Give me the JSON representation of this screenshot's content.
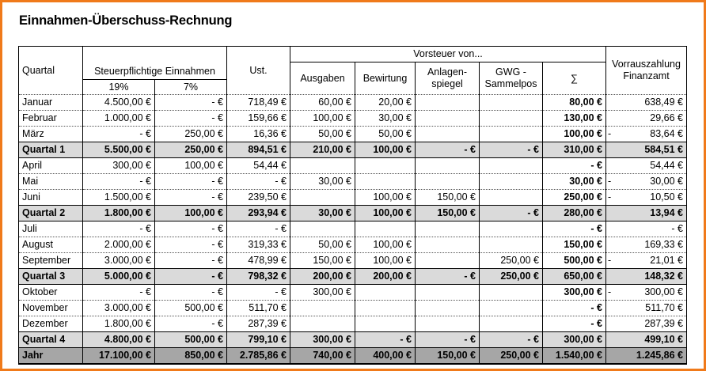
{
  "title": "Einnahmen-Überschuss-Rechnung",
  "headers": {
    "quartal": "Quartal",
    "einnahmen": "Steuerpflichtige Einnahmen",
    "p19": "19%",
    "p7": "7%",
    "ust": "Ust.",
    "vorsteuer": "Vorsteuer von...",
    "ausgaben": "Ausgaben",
    "bewirtung": "Bewirtung",
    "anlagen1": "Anlagen-",
    "anlagen2": "spiegel",
    "gwg1": "GWG -",
    "gwg2": "Sammelpos",
    "sum": "∑",
    "vorraus1": "Vorrauszahlung",
    "vorraus2": "Finanzamt"
  },
  "rows": [
    {
      "type": "month",
      "label": "Januar",
      "c": [
        "4.500,00 €",
        "-   €",
        "718,49 €",
        "60,00 €",
        "20,00 €",
        "",
        "",
        "80,00 €",
        "638,49 €"
      ]
    },
    {
      "type": "month",
      "label": "Februar",
      "c": [
        "1.000,00 €",
        "-   €",
        "159,66 €",
        "100,00 €",
        "30,00 €",
        "",
        "",
        "130,00 €",
        "29,66 €"
      ]
    },
    {
      "type": "month",
      "label": "März",
      "c": [
        "-   €",
        "250,00 €",
        "16,36 €",
        "50,00 €",
        "50,00 €",
        "",
        "",
        "100,00 €",
        "83,64 €"
      ],
      "neg": true
    },
    {
      "type": "sub",
      "label": "Quartal 1",
      "c": [
        "5.500,00 €",
        "250,00 €",
        "894,51 €",
        "210,00 €",
        "100,00 €",
        "-   €",
        "-   €",
        "310,00 €",
        "584,51 €"
      ]
    },
    {
      "type": "month",
      "label": "April",
      "c": [
        "300,00 €",
        "100,00 €",
        "54,44 €",
        "",
        "",
        "",
        "",
        "-   €",
        "54,44 €"
      ]
    },
    {
      "type": "month",
      "label": "Mai",
      "c": [
        "-   €",
        "-   €",
        "-   €",
        "30,00 €",
        "",
        "",
        "",
        "30,00 €",
        "30,00 €"
      ],
      "neg": true
    },
    {
      "type": "month",
      "label": "Juni",
      "c": [
        "1.500,00 €",
        "-   €",
        "239,50 €",
        "",
        "100,00 €",
        "150,00 €",
        "",
        "250,00 €",
        "10,50 €"
      ],
      "neg": true
    },
    {
      "type": "sub",
      "label": "Quartal 2",
      "c": [
        "1.800,00 €",
        "100,00 €",
        "293,94 €",
        "30,00 €",
        "100,00 €",
        "150,00 €",
        "-   €",
        "280,00 €",
        "13,94 €"
      ]
    },
    {
      "type": "month",
      "label": "Juli",
      "c": [
        "-   €",
        "-   €",
        "-   €",
        "",
        "",
        "",
        "",
        "-   €",
        "-   €"
      ]
    },
    {
      "type": "month",
      "label": "August",
      "c": [
        "2.000,00 €",
        "-   €",
        "319,33 €",
        "50,00 €",
        "100,00 €",
        "",
        "",
        "150,00 €",
        "169,33 €"
      ]
    },
    {
      "type": "month",
      "label": "September",
      "c": [
        "3.000,00 €",
        "-   €",
        "478,99 €",
        "150,00 €",
        "100,00 €",
        "",
        "250,00 €",
        "500,00 €",
        "21,01 €"
      ],
      "neg": true
    },
    {
      "type": "sub",
      "label": "Quartal 3",
      "c": [
        "5.000,00 €",
        "-   €",
        "798,32 €",
        "200,00 €",
        "200,00 €",
        "-   €",
        "250,00 €",
        "650,00 €",
        "148,32 €"
      ]
    },
    {
      "type": "month",
      "label": "Oktober",
      "c": [
        "-   €",
        "-   €",
        "-   €",
        "300,00 €",
        "",
        "",
        "",
        "300,00 €",
        "300,00 €"
      ],
      "neg": true
    },
    {
      "type": "month",
      "label": "November",
      "c": [
        "3.000,00 €",
        "500,00 €",
        "511,70 €",
        "",
        "",
        "",
        "",
        "-   €",
        "511,70 €"
      ]
    },
    {
      "type": "month",
      "label": "Dezember",
      "c": [
        "1.800,00 €",
        "-   €",
        "287,39 €",
        "",
        "",
        "",
        "",
        "-   €",
        "287,39 €"
      ]
    },
    {
      "type": "sub",
      "label": "Quartal 4",
      "c": [
        "4.800,00 €",
        "500,00 €",
        "799,10 €",
        "300,00 €",
        "-   €",
        "-   €",
        "-   €",
        "300,00 €",
        "499,10 €"
      ]
    },
    {
      "type": "year",
      "label": "Jahr",
      "c": [
        "17.100,00 €",
        "850,00 €",
        "2.785,86 €",
        "740,00 €",
        "400,00 €",
        "150,00 €",
        "250,00 €",
        "1.540,00 €",
        "1.245,86 €"
      ]
    }
  ]
}
